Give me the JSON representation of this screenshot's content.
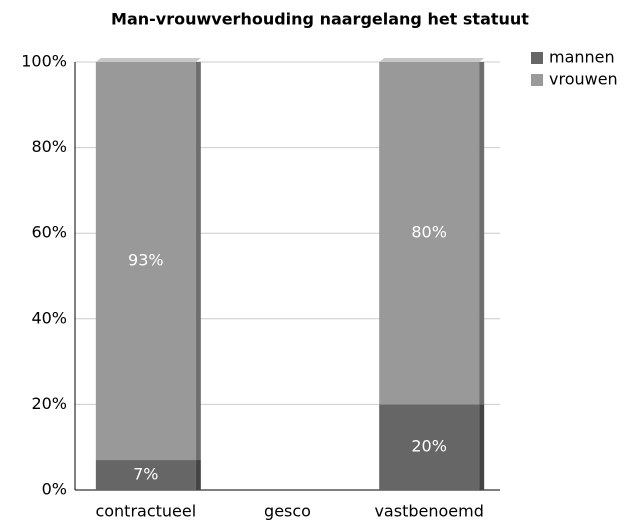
{
  "chart_data": {
    "type": "stacked_bar",
    "title": "Man-vrouwverhouding naargelang het statuut",
    "categories": [
      "contractueel",
      "gesco",
      "vastbenoemd"
    ],
    "series": [
      {
        "name": "mannen",
        "color": "#666666",
        "values": [
          7,
          null,
          20
        ],
        "value_labels": [
          "7%",
          null,
          "20%"
        ]
      },
      {
        "name": "vrouwen",
        "color": "#999999",
        "values": [
          93,
          null,
          80
        ],
        "value_labels": [
          "93%",
          null,
          "80%"
        ]
      }
    ],
    "ylim": [
      0,
      100
    ],
    "yticks": [
      {
        "value": 0,
        "label": "0%"
      },
      {
        "value": 20,
        "label": "20%"
      },
      {
        "value": 40,
        "label": "40%"
      },
      {
        "value": 60,
        "label": "60%"
      },
      {
        "value": 80,
        "label": "80%"
      },
      {
        "value": 100,
        "label": "100%"
      }
    ],
    "grid": true,
    "legend": "upper right"
  }
}
